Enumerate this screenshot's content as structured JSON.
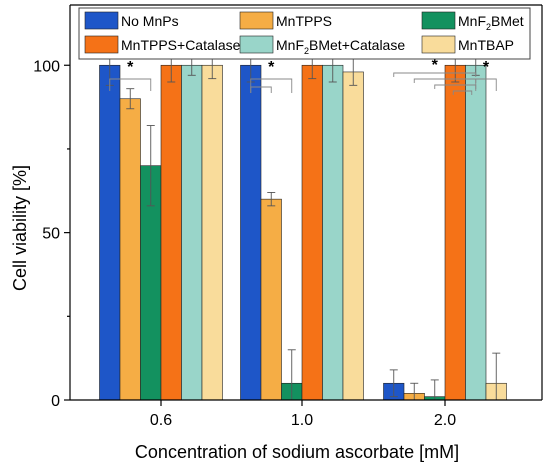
{
  "chart_data": {
    "type": "bar",
    "xlabel": "Concentration of sodium ascorbate [mM]",
    "ylabel": "Cell viability [%]",
    "ylim": [
      0,
      118
    ],
    "categories": [
      "0.6",
      "1.0",
      "2.0"
    ],
    "yticks": [
      0,
      50,
      100
    ],
    "grid": false,
    "legend_position": "top",
    "series": [
      {
        "name": "No MnPs",
        "color": "#1e56c8",
        "values": [
          100,
          100,
          5
        ],
        "errors": [
          6,
          5,
          4
        ]
      },
      {
        "name": "MnTPPS",
        "color": "#f5ad45",
        "values": [
          90,
          60,
          2
        ],
        "errors": [
          3,
          2,
          3
        ]
      },
      {
        "name": "MnF2BMet",
        "name_main": "MnF",
        "name_sub": "2",
        "name_rest": "BMet",
        "color": "#13915f",
        "values": [
          70,
          5,
          1
        ],
        "errors": [
          12,
          10,
          5
        ]
      },
      {
        "name": "MnTPPS+Catalase",
        "color": "#f57217",
        "values": [
          100,
          100,
          100
        ],
        "errors": [
          5,
          4,
          5
        ]
      },
      {
        "name": "MnF2BMet+Catalase",
        "name_main": "MnF",
        "name_sub": "2",
        "name_rest": "BMet+Catalase",
        "color": "#99d5c9",
        "values": [
          100,
          100,
          100
        ],
        "errors": [
          3,
          5,
          3
        ]
      },
      {
        "name": "MnTBAP",
        "color": "#f9dc9b",
        "values": [
          100,
          98,
          5
        ],
        "errors": [
          4,
          4,
          9
        ]
      }
    ],
    "significance_marker": "*"
  }
}
